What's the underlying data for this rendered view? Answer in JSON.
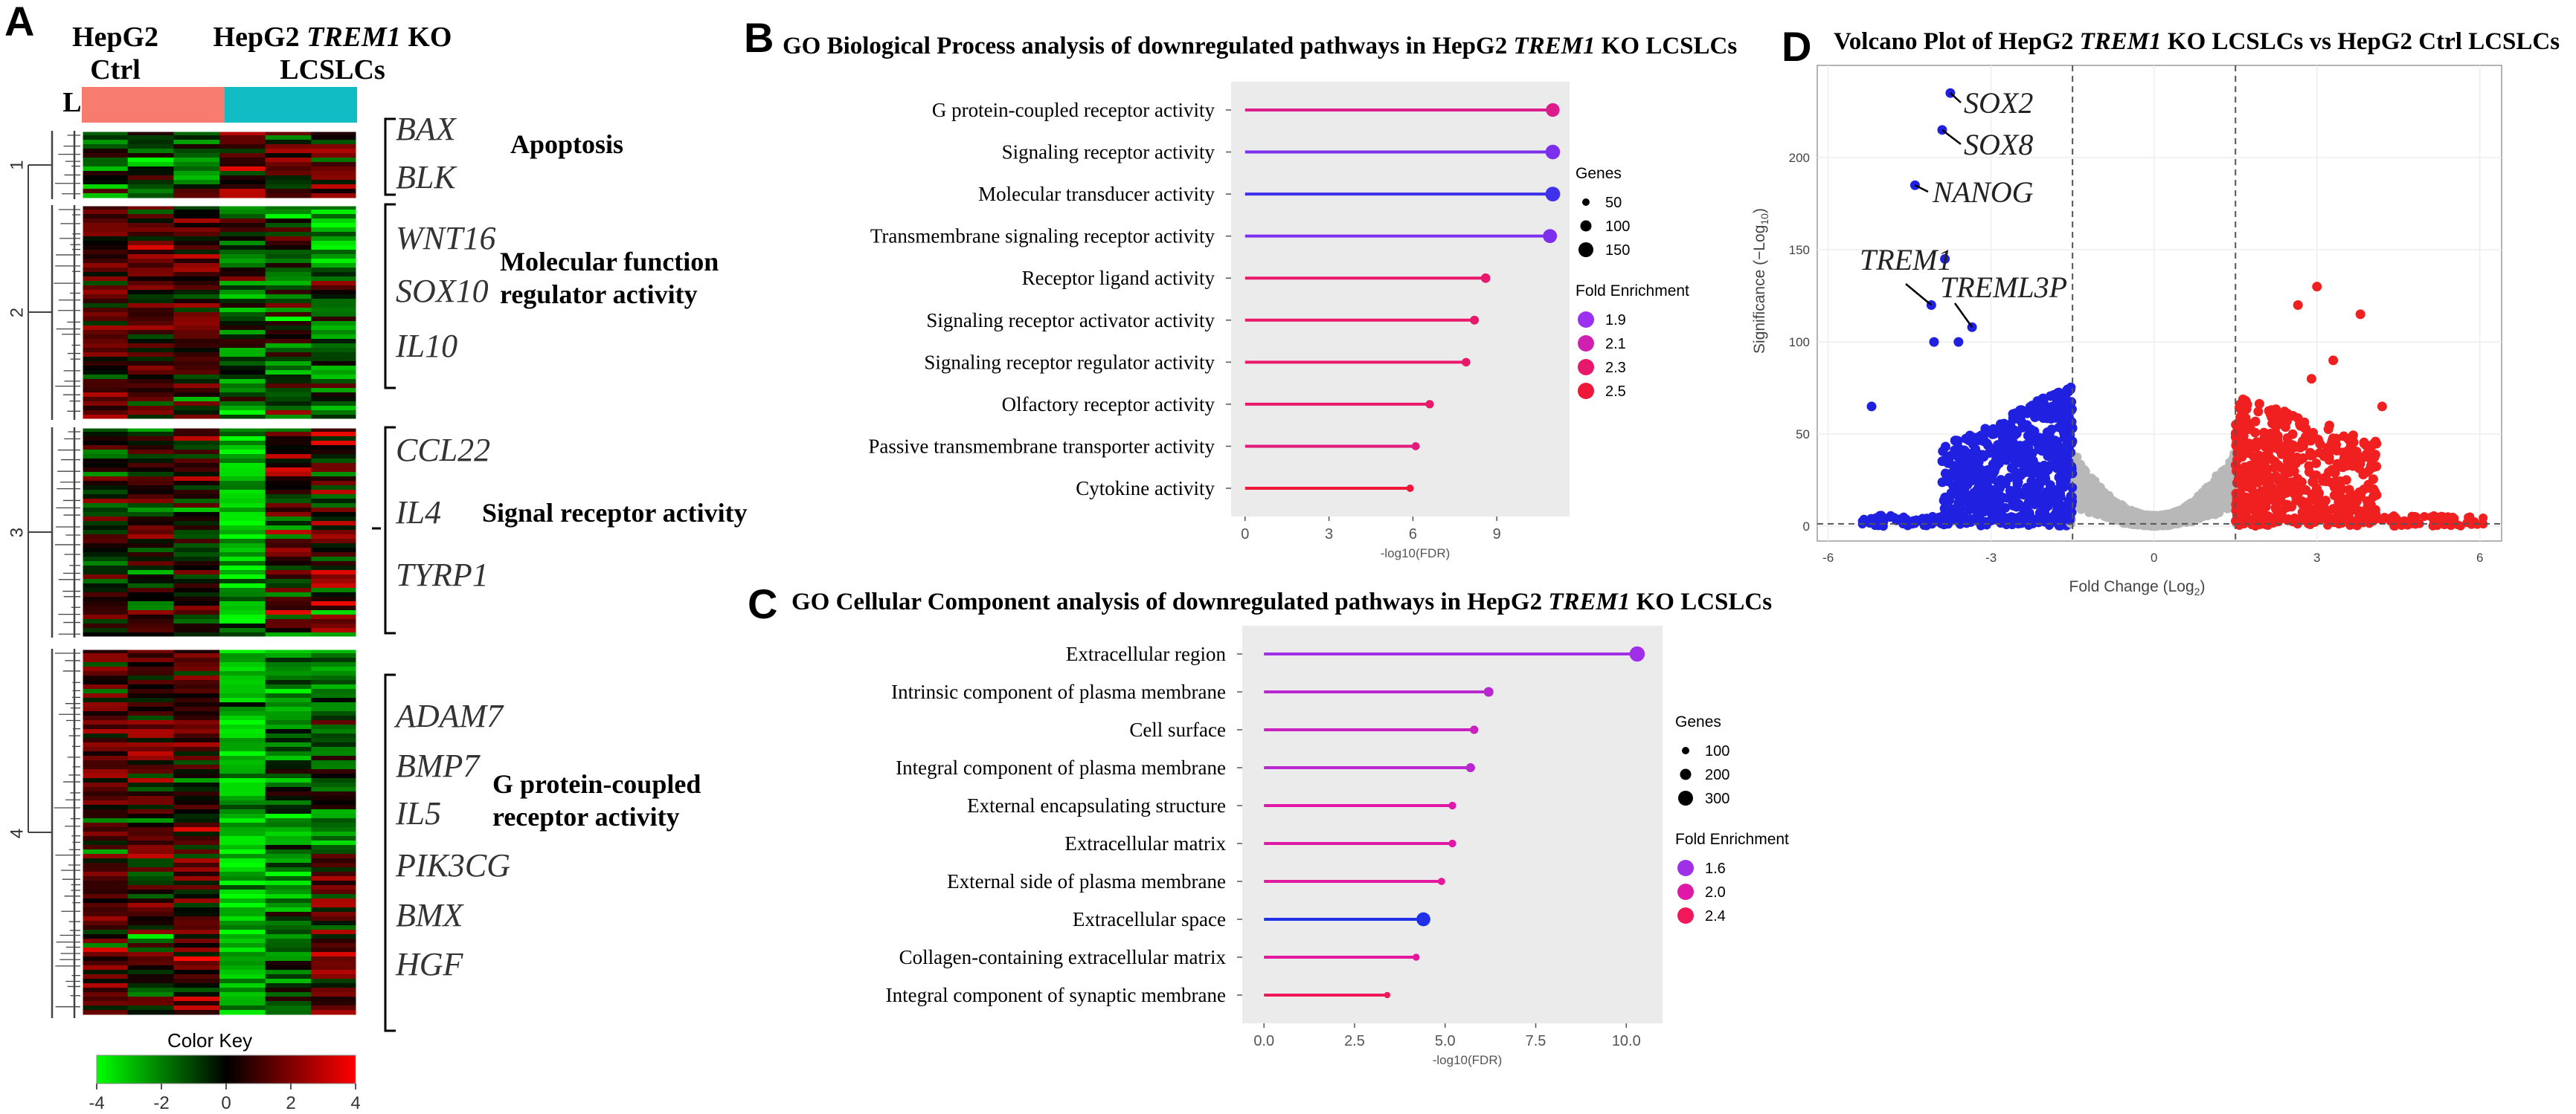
{
  "panels": {
    "a": "A",
    "b": "B",
    "c": "C",
    "d": "D"
  },
  "heatmap": {
    "group1": [
      "HepG2 Ctrl",
      "LCSLCs"
    ],
    "group2_pre": "HepG2 ",
    "group2_italic": "TREM1",
    "group2_post": " KO",
    "group2_line2": "LCSLCs",
    "group_colors": [
      "#f87b70",
      "#12bcc4"
    ],
    "cluster_labels": [
      "1",
      "2",
      "3",
      "4"
    ],
    "clusters": [
      {
        "genes": [
          "BAX",
          "BLK"
        ],
        "category": [
          "Apoptosis"
        ]
      },
      {
        "genes": [
          "WNT16",
          "SOX10",
          "IL10"
        ],
        "category": [
          "Molecular function",
          "regulator activity"
        ]
      },
      {
        "genes": [
          "CCL22",
          "IL4",
          "TYRP1"
        ],
        "category": [
          "Signal receptor activity"
        ]
      },
      {
        "genes": [
          "ADAM7",
          "BMP7",
          "IL5",
          "PIK3CG",
          "BMX",
          "HGF"
        ],
        "category": [
          "G protein-coupled",
          "receptor activity"
        ]
      }
    ],
    "color_key": {
      "title": "Color Key",
      "ticks": [
        "-4",
        "-2",
        "0",
        "2",
        "4"
      ],
      "low": "#00ff00",
      "mid": "#000000",
      "high": "#ff0000"
    }
  },
  "chart_data": [
    {
      "id": "B",
      "type": "lollipop",
      "title_pre": "GO Biological Process analysis of downregulated pathways in HepG2 ",
      "title_italic": "TREM1",
      "title_post": " KO LCSLCs",
      "xlabel": "-log10(FDR)",
      "xlim": [
        -0.5,
        11.6
      ],
      "xticks": [
        "0",
        "3",
        "6",
        "9"
      ],
      "categories": [
        "G protein-coupled receptor activity",
        "Signaling receptor activity",
        "Molecular transducer activity",
        "Transmembrane signaling receptor activity",
        "Receptor ligand activity",
        "Signaling receptor activator activity",
        "Signaling receptor regulator activity",
        "Olfactory receptor activity",
        "Passive transmembrane transporter activity",
        "Cytokine activity"
      ],
      "values": [
        11.0,
        11.0,
        11.0,
        10.9,
        8.6,
        8.2,
        7.9,
        6.6,
        6.1,
        5.9
      ],
      "genes": [
        150,
        165,
        168,
        155,
        75,
        65,
        60,
        55,
        50,
        40
      ],
      "fold_enrichment": [
        2.2,
        1.85,
        1.75,
        1.85,
        2.3,
        2.3,
        2.3,
        2.3,
        2.25,
        2.55
      ],
      "size_legend": {
        "title": "Genes",
        "labels": [
          "50",
          "100",
          "150"
        ]
      },
      "color_legend": {
        "title": "Fold Enrichment",
        "labels": [
          "1.9",
          "2.1",
          "2.3",
          "2.5"
        ],
        "colors": [
          "#9b30f0",
          "#d020b0",
          "#e8186a",
          "#f01838"
        ]
      }
    },
    {
      "id": "C",
      "type": "lollipop",
      "title_pre": "GO Cellular Component analysis of downregulated pathways in HepG2 ",
      "title_italic": "TREM1",
      "title_post": " KO LCSLCs",
      "xlabel": "-log10(FDR)",
      "xlim": [
        -0.6,
        11.0
      ],
      "xticks": [
        "0.0",
        "2.5",
        "5.0",
        "7.5",
        "10.0"
      ],
      "categories": [
        "Extracellular region",
        "Intrinsic component of plasma membrane",
        "Cell surface",
        "Integral  component of plasma membrane",
        "External encapsulating structure",
        "Extracellular matrix",
        "External side of plasma membrane",
        "Extracellular space",
        "Collagen-containing extracellular matrix",
        "Integral  component of synaptic membrane"
      ],
      "values": [
        10.3,
        6.2,
        5.8,
        5.7,
        5.2,
        5.2,
        4.9,
        4.4,
        4.2,
        3.4
      ],
      "genes": [
        320,
        160,
        120,
        140,
        100,
        100,
        90,
        280,
        80,
        60
      ],
      "fold_enrichment": [
        1.6,
        1.75,
        1.85,
        1.75,
        2.0,
        2.0,
        2.05,
        1.3,
        2.05,
        2.4
      ],
      "size_legend": {
        "title": "Genes",
        "labels": [
          "100",
          "200",
          "300"
        ]
      },
      "color_legend": {
        "title": "Fold Enrichment",
        "labels": [
          "1.6",
          "2.0",
          "2.4"
        ],
        "colors": [
          "#a030e8",
          "#e018a8",
          "#f01858"
        ]
      }
    },
    {
      "id": "D",
      "type": "scatter",
      "title_pre": "Volcano Plot of HepG2 ",
      "title_italic": "TREM1",
      "title_post": " KO LCSLCs vs HepG2 Ctrl LCSLCs",
      "xlabel": "Fold Change (Log",
      "xlabel_sub": "2",
      "xlabel_end": ")",
      "ylabel": "Significance (−Log",
      "ylabel_sub": "10",
      "ylabel_end": ")",
      "xlim": [
        -6.2,
        6.4
      ],
      "ylim": [
        -8,
        250
      ],
      "xticks": [
        -6,
        -3,
        0,
        3,
        6
      ],
      "yticks": [
        0,
        50,
        100,
        150,
        200
      ],
      "fc_threshold": 1.5,
      "p_threshold": 1.3,
      "colors": {
        "down": "#2020e0",
        "ns": "#b8b8b8",
        "up": "#f02020"
      },
      "labeled_points": [
        {
          "name": "SOX2",
          "x": -3.75,
          "y": 235
        },
        {
          "name": "SOX8",
          "x": -3.9,
          "y": 215
        },
        {
          "name": "NANOG",
          "x": -4.4,
          "y": 185
        },
        {
          "name": "TREM1",
          "x": -4.1,
          "y": 120
        },
        {
          "name": "TREML3P",
          "x": -3.35,
          "y": 108
        }
      ],
      "notable_points": [
        {
          "x": -5.2,
          "y": 65
        },
        {
          "x": -4.05,
          "y": 100
        },
        {
          "x": -3.85,
          "y": 145
        },
        {
          "x": -3.6,
          "y": 100
        },
        {
          "x": 3.0,
          "y": 130
        },
        {
          "x": 3.8,
          "y": 115
        },
        {
          "x": 2.65,
          "y": 120
        },
        {
          "x": 4.2,
          "y": 65
        },
        {
          "x": 2.9,
          "y": 80
        },
        {
          "x": 3.3,
          "y": 90
        }
      ]
    }
  ]
}
